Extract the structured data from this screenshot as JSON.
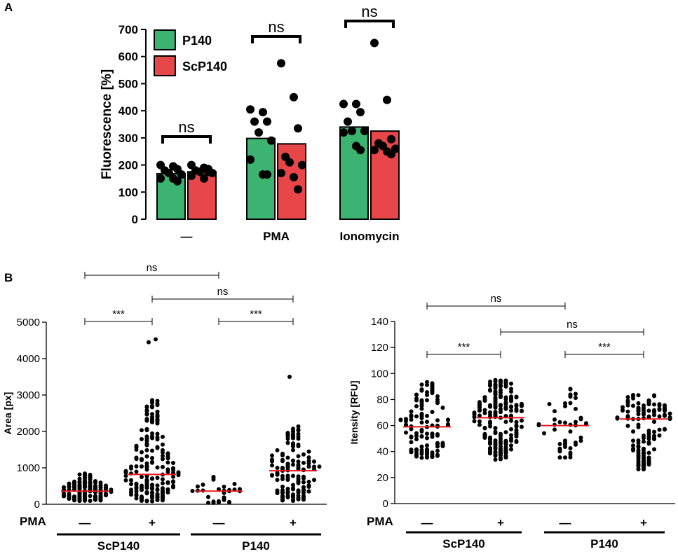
{
  "panels": {
    "a": "A",
    "b": "B"
  },
  "colors": {
    "p140": "#3cb371",
    "scp140": "#e8474a",
    "median": "#e8191e",
    "dot": "#000000"
  },
  "chart_data": [
    {
      "type": "bar",
      "title": "",
      "ylabel": "Fluorescence [%]",
      "xlabel": "",
      "ylim": [
        0,
        700
      ],
      "yticks": [
        "0",
        "100",
        "200",
        "300",
        "400",
        "500",
        "600",
        "700"
      ],
      "categories": [
        "—",
        "PMA",
        "Ionomycin"
      ],
      "legend": {
        "position": "top-left",
        "entries": [
          "P140",
          "ScP140"
        ]
      },
      "series": [
        {
          "name": "P140",
          "color": "#3cb371",
          "values": [
            168,
            298,
            340
          ],
          "points": [
            [
              200,
              195,
              185,
              180,
              170,
              165,
              150,
              150,
              140
            ],
            [
              405,
              395,
              360,
              360,
              320,
              290,
              220,
              165,
              165
            ],
            [
              425,
              425,
              395,
              360,
              325,
              325,
              320,
              270,
              255
            ]
          ]
        },
        {
          "name": "ScP140",
          "color": "#e8474a",
          "values": [
            175,
            278,
            325
          ],
          "points": [
            [
              200,
              190,
              185,
              180,
              175,
              170,
              160,
              150,
              175
            ],
            [
              575,
              450,
              335,
              230,
              210,
              200,
              170,
              155,
              110
            ],
            [
              650,
              440,
              295,
              280,
              270,
              260,
              255,
              250,
              240
            ]
          ]
        }
      ],
      "significance": [
        {
          "group": 0,
          "label": "ns"
        },
        {
          "group": 1,
          "label": "ns"
        },
        {
          "group": 2,
          "label": "ns"
        }
      ]
    },
    {
      "type": "scatter",
      "ylabel": "Area [px]",
      "ylim": [
        0,
        5000
      ],
      "yticks": [
        "0",
        "1000",
        "2000",
        "3000",
        "4000",
        "5000"
      ],
      "row_label": "PMA",
      "conditions": [
        "—",
        "+",
        "—",
        "+"
      ],
      "group_labels": [
        "ScP140",
        "P140"
      ],
      "groups": [
        {
          "condition": "—",
          "median": 360,
          "min": 60,
          "max": 850,
          "n": 160
        },
        {
          "condition": "+",
          "median": 820,
          "min": 0,
          "max": 2900,
          "n": 200,
          "outliers": [
            4450,
            4530
          ]
        },
        {
          "condition": "—",
          "median": 360,
          "min": 0,
          "max": 900,
          "n": 30
        },
        {
          "condition": "+",
          "median": 920,
          "min": 0,
          "max": 2150,
          "n": 150,
          "outliers": [
            3500
          ]
        }
      ],
      "comparisons": [
        {
          "from": 0,
          "to": 1,
          "label": "***"
        },
        {
          "from": 2,
          "to": 3,
          "label": "***"
        },
        {
          "from": 0,
          "to": 2,
          "label": "ns"
        },
        {
          "from": 1,
          "to": 3,
          "label": "ns"
        }
      ]
    },
    {
      "type": "scatter",
      "ylabel": "Itensity [RFU]",
      "ylim": [
        0,
        140
      ],
      "yticks": [
        "0",
        "20",
        "40",
        "60",
        "80",
        "100",
        "120",
        "140"
      ],
      "row_label": "PMA",
      "conditions": [
        "—",
        "+",
        "—",
        "+"
      ],
      "group_labels": [
        "ScP140",
        "P140"
      ],
      "groups": [
        {
          "condition": "—",
          "median": 59,
          "min": 32,
          "max": 95,
          "n": 130
        },
        {
          "condition": "+",
          "median": 66,
          "min": 30,
          "max": 95,
          "n": 220
        },
        {
          "condition": "—",
          "median": 60,
          "min": 32,
          "max": 90,
          "n": 50
        },
        {
          "condition": "+",
          "median": 65,
          "min": 22,
          "max": 84,
          "n": 150
        }
      ],
      "comparisons": [
        {
          "from": 0,
          "to": 1,
          "label": "***"
        },
        {
          "from": 2,
          "to": 3,
          "label": "***"
        },
        {
          "from": 0,
          "to": 2,
          "label": "ns"
        },
        {
          "from": 1,
          "to": 3,
          "label": "ns"
        }
      ]
    }
  ]
}
